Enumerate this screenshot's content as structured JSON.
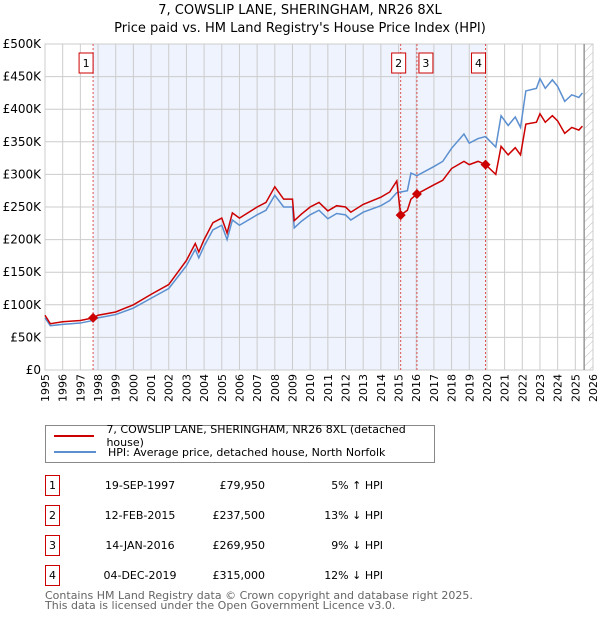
{
  "chart_data": {
    "type": "line",
    "title": "7, COWSLIP LANE, SHERINGHAM, NR26 8XL",
    "subtitle": "Price paid vs. HM Land Registry's House Price Index (HPI)",
    "xlim": [
      1995,
      2026
    ],
    "ylim": [
      0,
      500000
    ],
    "x_ticks": [
      "1995",
      "1996",
      "1997",
      "1998",
      "1999",
      "2000",
      "2001",
      "2002",
      "2003",
      "2004",
      "2005",
      "2006",
      "2007",
      "2008",
      "2009",
      "2010",
      "2011",
      "2012",
      "2013",
      "2014",
      "2015",
      "2016",
      "2017",
      "2018",
      "2019",
      "2020",
      "2021",
      "2022",
      "2023",
      "2024",
      "2025",
      "2026"
    ],
    "y_ticks": [
      {
        "v": 0,
        "label": "£0"
      },
      {
        "v": 50000,
        "label": "£50K"
      },
      {
        "v": 100000,
        "label": "£100K"
      },
      {
        "v": 150000,
        "label": "£150K"
      },
      {
        "v": 200000,
        "label": "£200K"
      },
      {
        "v": 250000,
        "label": "£250K"
      },
      {
        "v": 300000,
        "label": "£300K"
      },
      {
        "v": 350000,
        "label": "£350K"
      },
      {
        "v": 400000,
        "label": "£400K"
      },
      {
        "v": 450000,
        "label": "£450K"
      },
      {
        "v": 500000,
        "label": "£500K"
      }
    ],
    "grid": true,
    "shaded_range": [
      1997.72,
      2019.92
    ],
    "forecast_hatch_from": 2025.5,
    "series": [
      {
        "name": "7, COWSLIP LANE, SHERINGHAM, NR26 8XL (detached house)",
        "color": "#cc0000",
        "x": [
          1995,
          1995.3,
          1996,
          1997,
          1997.72,
          1998,
          1999,
          2000,
          2001,
          2002,
          2003,
          2003.5,
          2003.7,
          2004,
          2004.5,
          2005,
          2005.3,
          2005.6,
          2006,
          2007,
          2007.5,
          2008,
          2008.5,
          2009,
          2009.1,
          2009.5,
          2010,
          2010.5,
          2011,
          2011.5,
          2012,
          2012.3,
          2013,
          2014,
          2014.5,
          2014.9,
          2015.12,
          2015.5,
          2015.7,
          2016.04,
          2017,
          2017.5,
          2018,
          2018.7,
          2019,
          2019.5,
          2019.92,
          2020.5,
          2020.8,
          2021.2,
          2021.6,
          2021.9,
          2022.2,
          2022.8,
          2023,
          2023.3,
          2023.7,
          2024,
          2024.4,
          2024.8,
          2025.2,
          2025.4
        ],
        "y": [
          84000,
          71000,
          74000,
          76000,
          79950,
          84000,
          89000,
          100000,
          116000,
          131000,
          168000,
          194000,
          181000,
          200000,
          226000,
          233000,
          210000,
          241000,
          233000,
          250000,
          257000,
          281000,
          262000,
          262000,
          229000,
          239000,
          250000,
          257000,
          244000,
          252000,
          250000,
          242000,
          254000,
          265000,
          273000,
          290000,
          237500,
          245000,
          262000,
          269950,
          284000,
          291000,
          309000,
          320000,
          315000,
          320000,
          315000,
          300000,
          343000,
          330000,
          341000,
          330000,
          377000,
          380000,
          393000,
          380000,
          390000,
          382000,
          363000,
          372000,
          368000,
          374000
        ]
      },
      {
        "name": "HPI: Average price, detached house, North Norfolk",
        "color": "#5b8fd0",
        "x": [
          1995,
          1995.3,
          1996,
          1997,
          1997.72,
          1998,
          1999,
          2000,
          2001,
          2002,
          2003,
          2003.5,
          2003.7,
          2004,
          2004.5,
          2005,
          2005.3,
          2005.6,
          2006,
          2007,
          2007.5,
          2008,
          2008.5,
          2009,
          2009.1,
          2009.5,
          2010,
          2010.5,
          2011,
          2011.5,
          2012,
          2012.3,
          2013,
          2014,
          2014.5,
          2014.9,
          2015.12,
          2015.5,
          2015.7,
          2016.04,
          2017,
          2017.5,
          2018,
          2018.7,
          2019,
          2019.5,
          2019.92,
          2020.5,
          2020.8,
          2021.2,
          2021.6,
          2021.9,
          2022.2,
          2022.8,
          2023,
          2023.3,
          2023.7,
          2024,
          2024.4,
          2024.8,
          2025.2,
          2025.4
        ],
        "y": [
          80000,
          68000,
          70000,
          72000,
          76000,
          80000,
          85000,
          95000,
          110000,
          125000,
          160000,
          185000,
          172000,
          190000,
          215000,
          222000,
          200000,
          230000,
          222000,
          238000,
          245000,
          268000,
          250000,
          250000,
          218000,
          228000,
          238000,
          245000,
          232000,
          240000,
          238000,
          230000,
          242000,
          252000,
          260000,
          272000,
          273000,
          275000,
          302000,
          298000,
          312000,
          320000,
          340000,
          362000,
          348000,
          355000,
          358000,
          342000,
          390000,
          375000,
          388000,
          372000,
          428000,
          432000,
          447000,
          432000,
          445000,
          435000,
          412000,
          422000,
          418000,
          425000
        ]
      }
    ],
    "sales": [
      {
        "num": "1",
        "x": 1997.72,
        "y": 79950
      },
      {
        "num": "2",
        "x": 2015.12,
        "y": 237500
      },
      {
        "num": "3",
        "x": 2016.04,
        "y": 269950
      },
      {
        "num": "4",
        "x": 2019.92,
        "y": 315000
      }
    ]
  },
  "table": [
    {
      "num": "1",
      "date": "19-SEP-1997",
      "price": "£79,950",
      "hpi": "5% ↑ HPI"
    },
    {
      "num": "2",
      "date": "12-FEB-2015",
      "price": "£237,500",
      "hpi": "13% ↓ HPI"
    },
    {
      "num": "3",
      "date": "14-JAN-2016",
      "price": "£269,950",
      "hpi": "9% ↓ HPI"
    },
    {
      "num": "4",
      "date": "04-DEC-2019",
      "price": "£315,000",
      "hpi": "12% ↓ HPI"
    }
  ],
  "footer": {
    "line1": "Contains HM Land Registry data © Crown copyright and database right 2025.",
    "line2": "This data is licensed under the Open Government Licence v3.0."
  }
}
